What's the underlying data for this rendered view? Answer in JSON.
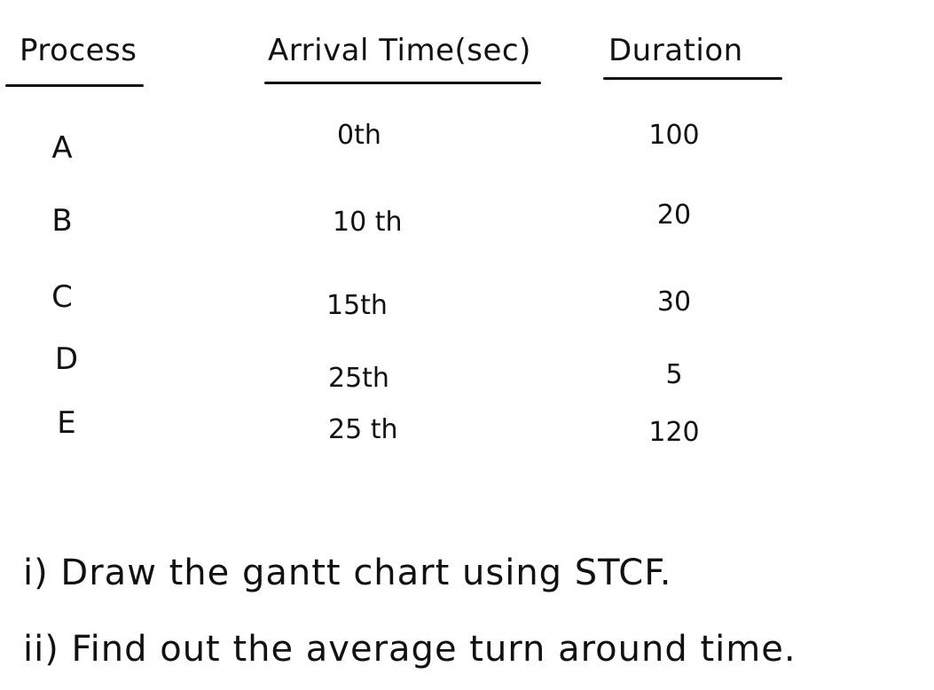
{
  "table": {
    "headers": {
      "process": "Process",
      "arrival": "Arrival Time(sec)",
      "duration": "Duration"
    },
    "rows": [
      {
        "process": "A",
        "arrival": "0th",
        "duration": "100"
      },
      {
        "process": "B",
        "arrival": "10 th",
        "duration": "20"
      },
      {
        "process": "C",
        "arrival": "15th",
        "duration": "30"
      },
      {
        "process": "D",
        "arrival": "25th",
        "duration": "5"
      },
      {
        "process": "E",
        "arrival": "25 th",
        "duration": "120"
      }
    ]
  },
  "questions": [
    "i) Draw the gantt chart using STCF.",
    "ii) Find out the average turn around time."
  ]
}
